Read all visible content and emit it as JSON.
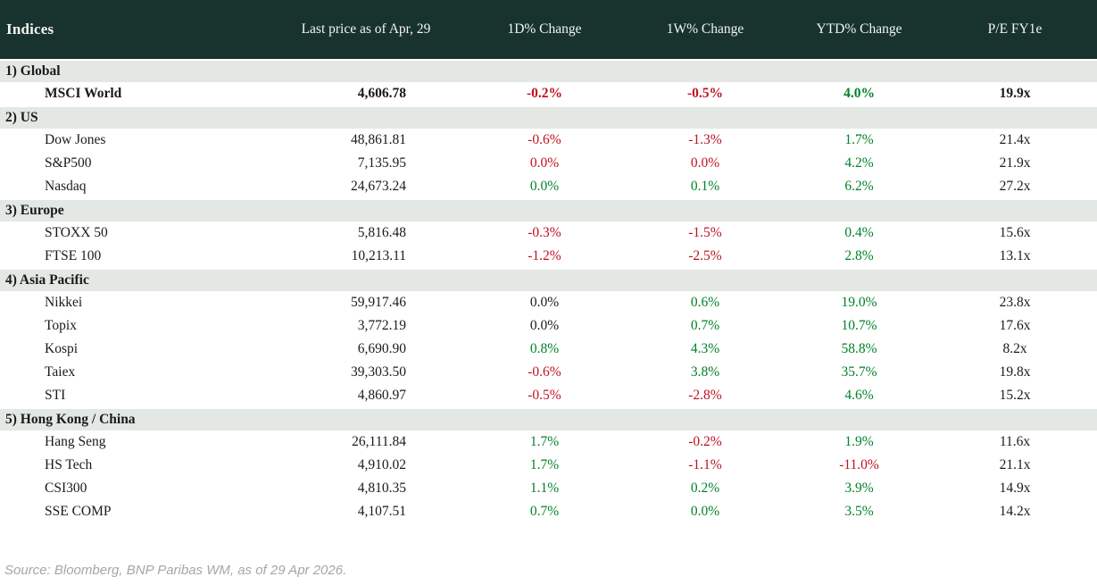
{
  "header": {
    "columns": [
      "Indices",
      "Last price as of Apr, 29",
      "1D% Change",
      "1W% Change",
      "YTD% Change",
      "P/E FY1e"
    ]
  },
  "colors": {
    "header_background": "#18332e",
    "header_text": "#f4f4ef",
    "section_background": "#e3e8e4",
    "negative": "#c01020",
    "positive": "#008228",
    "neutral_text": "#1a1a1a"
  },
  "sections": [
    {
      "label": "1) Global",
      "rows": [
        {
          "name": "MSCI World",
          "price": "4,606.78",
          "d1": {
            "v": "-0.2%",
            "c": "neg"
          },
          "w1": {
            "v": "-0.5%",
            "c": "neg"
          },
          "ytd": {
            "v": "4.0%",
            "c": "pos"
          },
          "pe": "19.9x",
          "emphasis": true
        }
      ]
    },
    {
      "label": "2) US",
      "rows": [
        {
          "name": "Dow Jones",
          "price": "48,861.81",
          "d1": {
            "v": "-0.6%",
            "c": "neg"
          },
          "w1": {
            "v": "-1.3%",
            "c": "neg"
          },
          "ytd": {
            "v": "1.7%",
            "c": "pos"
          },
          "pe": "21.4x",
          "emphasis": false
        },
        {
          "name": "S&P500",
          "price": "7,135.95",
          "d1": {
            "v": "0.0%",
            "c": "neg"
          },
          "w1": {
            "v": "0.0%",
            "c": "neg"
          },
          "ytd": {
            "v": "4.2%",
            "c": "pos"
          },
          "pe": "21.9x",
          "emphasis": false
        },
        {
          "name": "Nasdaq",
          "price": "24,673.24",
          "d1": {
            "v": "0.0%",
            "c": "pos"
          },
          "w1": {
            "v": "0.1%",
            "c": "pos"
          },
          "ytd": {
            "v": "6.2%",
            "c": "pos"
          },
          "pe": "27.2x",
          "emphasis": false
        }
      ]
    },
    {
      "label": "3) Europe",
      "rows": [
        {
          "name": "STOXX 50",
          "price": "5,816.48",
          "d1": {
            "v": "-0.3%",
            "c": "neg"
          },
          "w1": {
            "v": "-1.5%",
            "c": "neg"
          },
          "ytd": {
            "v": "0.4%",
            "c": "pos"
          },
          "pe": "15.6x",
          "emphasis": false
        },
        {
          "name": "FTSE 100",
          "price": "10,213.11",
          "d1": {
            "v": "-1.2%",
            "c": "neg"
          },
          "w1": {
            "v": "-2.5%",
            "c": "neg"
          },
          "ytd": {
            "v": "2.8%",
            "c": "pos"
          },
          "pe": "13.1x",
          "emphasis": false
        }
      ]
    },
    {
      "label": "4) Asia Pacific",
      "rows": [
        {
          "name": "Nikkei",
          "price": "59,917.46",
          "d1": {
            "v": "0.0%",
            "c": "neutral"
          },
          "w1": {
            "v": "0.6%",
            "c": "pos"
          },
          "ytd": {
            "v": "19.0%",
            "c": "pos"
          },
          "pe": "23.8x",
          "emphasis": false
        },
        {
          "name": "Topix",
          "price": "3,772.19",
          "d1": {
            "v": "0.0%",
            "c": "neutral"
          },
          "w1": {
            "v": "0.7%",
            "c": "pos"
          },
          "ytd": {
            "v": "10.7%",
            "c": "pos"
          },
          "pe": "17.6x",
          "emphasis": false
        },
        {
          "name": "Kospi",
          "price": "6,690.90",
          "d1": {
            "v": "0.8%",
            "c": "pos"
          },
          "w1": {
            "v": "4.3%",
            "c": "pos"
          },
          "ytd": {
            "v": "58.8%",
            "c": "pos"
          },
          "pe": "8.2x",
          "emphasis": false
        },
        {
          "name": "Taiex",
          "price": "39,303.50",
          "d1": {
            "v": "-0.6%",
            "c": "neg"
          },
          "w1": {
            "v": "3.8%",
            "c": "pos"
          },
          "ytd": {
            "v": "35.7%",
            "c": "pos"
          },
          "pe": "19.8x",
          "emphasis": false
        },
        {
          "name": "STI",
          "price": "4,860.97",
          "d1": {
            "v": "-0.5%",
            "c": "neg"
          },
          "w1": {
            "v": "-2.8%",
            "c": "neg"
          },
          "ytd": {
            "v": "4.6%",
            "c": "pos"
          },
          "pe": "15.2x",
          "emphasis": false
        }
      ]
    },
    {
      "label": "5) Hong Kong / China",
      "rows": [
        {
          "name": "Hang Seng",
          "price": "26,111.84",
          "d1": {
            "v": "1.7%",
            "c": "pos"
          },
          "w1": {
            "v": "-0.2%",
            "c": "neg"
          },
          "ytd": {
            "v": "1.9%",
            "c": "pos"
          },
          "pe": "11.6x",
          "emphasis": false
        },
        {
          "name": "HS Tech",
          "price": "4,910.02",
          "d1": {
            "v": "1.7%",
            "c": "pos"
          },
          "w1": {
            "v": "-1.1%",
            "c": "neg"
          },
          "ytd": {
            "v": "-11.0%",
            "c": "neg"
          },
          "pe": "21.1x",
          "emphasis": false
        },
        {
          "name": "CSI300",
          "price": "4,810.35",
          "d1": {
            "v": "1.1%",
            "c": "pos"
          },
          "w1": {
            "v": "0.2%",
            "c": "pos"
          },
          "ytd": {
            "v": "3.9%",
            "c": "pos"
          },
          "pe": "14.9x",
          "emphasis": false
        },
        {
          "name": "SSE COMP",
          "price": "4,107.51",
          "d1": {
            "v": "0.7%",
            "c": "pos"
          },
          "w1": {
            "v": "0.0%",
            "c": "pos"
          },
          "ytd": {
            "v": "3.5%",
            "c": "pos"
          },
          "pe": "14.2x",
          "emphasis": false
        }
      ]
    }
  ],
  "footer": {
    "source": "Source: Bloomberg, BNP Paribas WM, as of 29 Apr 2026."
  },
  "chart_data": {
    "type": "table",
    "title": "Indices",
    "columns": [
      "Indices",
      "Last price as of Apr, 29",
      "1D% Change",
      "1W% Change",
      "YTD% Change",
      "P/E FY1e"
    ],
    "rows": [
      [
        "1) Global",
        "",
        "",
        "",
        "",
        ""
      ],
      [
        "MSCI World",
        4606.78,
        -0.2,
        -0.5,
        4.0,
        19.9
      ],
      [
        "2) US",
        "",
        "",
        "",
        "",
        ""
      ],
      [
        "Dow Jones",
        48861.81,
        -0.6,
        -1.3,
        1.7,
        21.4
      ],
      [
        "S&P500",
        7135.95,
        0.0,
        0.0,
        4.2,
        21.9
      ],
      [
        "Nasdaq",
        24673.24,
        0.0,
        0.1,
        6.2,
        27.2
      ],
      [
        "3) Europe",
        "",
        "",
        "",
        "",
        ""
      ],
      [
        "STOXX 50",
        5816.48,
        -0.3,
        -1.5,
        0.4,
        15.6
      ],
      [
        "FTSE 100",
        10213.11,
        -1.2,
        -2.5,
        2.8,
        13.1
      ],
      [
        "4) Asia Pacific",
        "",
        "",
        "",
        "",
        ""
      ],
      [
        "Nikkei",
        59917.46,
        0.0,
        0.6,
        19.0,
        23.8
      ],
      [
        "Topix",
        3772.19,
        0.0,
        0.7,
        10.7,
        17.6
      ],
      [
        "Kospi",
        6690.9,
        0.8,
        4.3,
        58.8,
        8.2
      ],
      [
        "Taiex",
        39303.5,
        -0.6,
        3.8,
        35.7,
        19.8
      ],
      [
        "STI",
        4860.97,
        -0.5,
        -2.8,
        4.6,
        15.2
      ],
      [
        "5) Hong Kong / China",
        "",
        "",
        "",
        "",
        ""
      ],
      [
        "Hang Seng",
        26111.84,
        1.7,
        -0.2,
        1.9,
        11.6
      ],
      [
        "HS Tech",
        4910.02,
        1.7,
        -1.1,
        -11.0,
        21.1
      ],
      [
        "CSI300",
        4810.35,
        1.1,
        0.2,
        3.9,
        14.9
      ],
      [
        "SSE COMP",
        4107.51,
        0.7,
        0.0,
        3.5,
        14.2
      ]
    ]
  }
}
